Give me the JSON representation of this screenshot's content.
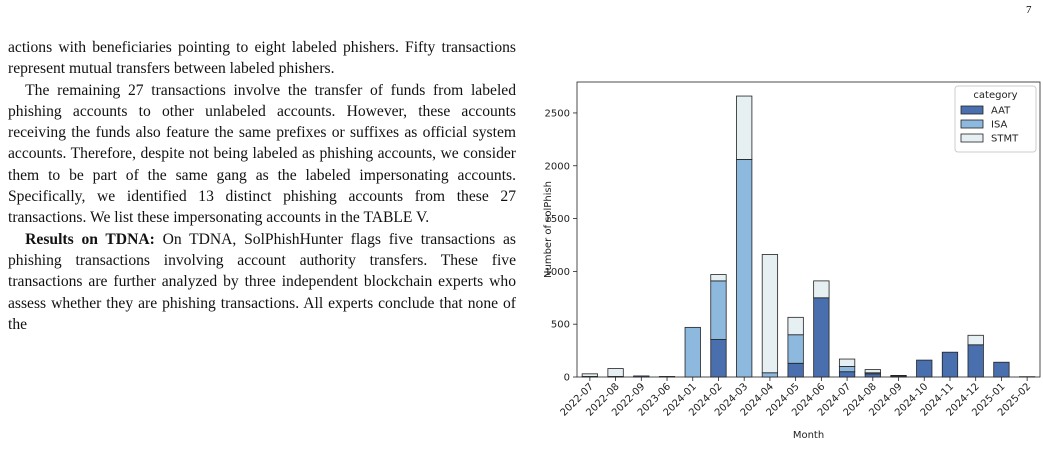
{
  "page_number": "7",
  "paragraphs": [
    {
      "text": "actions with beneficiaries pointing to eight labeled phishers. Fifty transactions represent mutual transfers between labeled phishers."
    },
    {
      "text": "The remaining 27 transactions involve the transfer of funds from labeled phishing accounts to other unlabeled accounts. However, these accounts receiving the funds also feature the same prefixes or suffixes as official system accounts. Therefore, despite not being labeled as phishing accounts, we consider them to be part of the same gang as the labeled impersonating accounts. Specifically, we identified 13 distinct phishing accounts from these 27 transactions. We list these impersonating accounts in the TABLE V."
    },
    {
      "lead": "Results on TDNA:",
      "text": " On TDNA, SolPhishHunter flags five transactions as phishing transactions involving account authority transfers. These five transactions are further analyzed by three independent blockchain experts who assess whether they are phishing transactions. All experts conclude that none of the"
    }
  ],
  "chart_data": {
    "type": "stacked_bar",
    "x_label": "Month",
    "y_label": "Number of solPhish",
    "categories": [
      "2022-07",
      "2022-08",
      "2022-09",
      "2023-06",
      "2024-01",
      "2024-02",
      "2024-03",
      "2024-04",
      "2024-05",
      "2024-06",
      "2024-07",
      "2024-08",
      "2024-09",
      "2024-10",
      "2024-11",
      "2024-12",
      "2025-01",
      "2025-02"
    ],
    "series": [
      {
        "name": "AAT",
        "color": "#4a6fae",
        "values": [
          5,
          5,
          10,
          0,
          0,
          355,
          0,
          0,
          130,
          750,
          50,
          30,
          10,
          160,
          235,
          305,
          140,
          3
        ]
      },
      {
        "name": "ISA",
        "color": "#8db9df",
        "values": [
          0,
          0,
          0,
          0,
          470,
          555,
          2060,
          40,
          270,
          0,
          50,
          10,
          0,
          0,
          0,
          0,
          0,
          0
        ]
      },
      {
        "name": "STMT",
        "color": "#e6eff2",
        "values": [
          25,
          75,
          0,
          5,
          0,
          60,
          600,
          1120,
          165,
          160,
          70,
          30,
          5,
          0,
          0,
          90,
          0,
          0
        ]
      }
    ],
    "ylim": [
      0,
      2793
    ],
    "yticks": [
      0,
      500,
      1000,
      1500,
      2000,
      2500
    ],
    "legend_title": "category",
    "legend": "upper-right"
  }
}
